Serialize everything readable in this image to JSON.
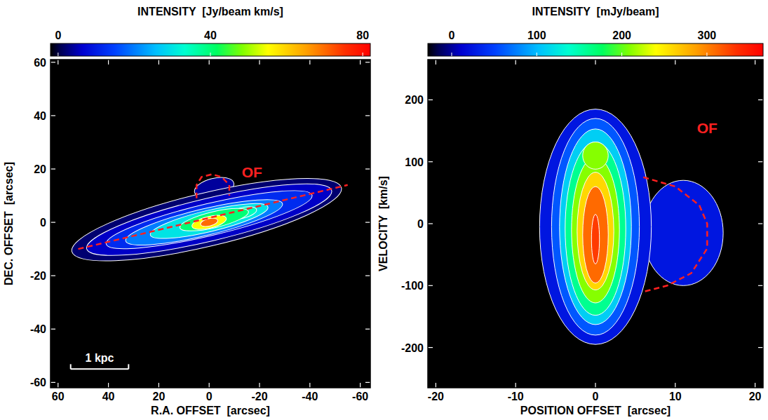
{
  "chart_data": [
    {
      "type": "heatmap",
      "xlabel": "R.A. OFFSET  [arcsec]",
      "ylabel": "DEC. OFFSET  [arcsec]",
      "xlim": [
        63,
        -64
      ],
      "ylim": [
        -62,
        61
      ],
      "xticks": [
        60,
        40,
        20,
        0,
        -20,
        -40,
        -60
      ],
      "yticks": [
        -60,
        -40,
        -20,
        0,
        20,
        40,
        60
      ],
      "colorbar": {
        "label": "INTENSITY  [Jy/beam km/s]",
        "range": [
          -2,
          82
        ],
        "ticks": [
          0,
          40,
          80
        ]
      },
      "major_axis": {
        "x": [
          52,
          -55
        ],
        "y": [
          -10,
          14
        ]
      },
      "components": [
        {
          "x": -2,
          "y": 13,
          "a": 8,
          "b": 3.5,
          "value": 4
        },
        {
          "x": 1,
          "y": 1,
          "a": 55,
          "b": 10,
          "value": 2
        },
        {
          "x": 0,
          "y": 1,
          "a": 50,
          "b": 8,
          "value": 6
        },
        {
          "x": 0,
          "y": 1,
          "a": 42,
          "b": 6,
          "value": 12
        },
        {
          "x": 2,
          "y": 0,
          "a": 32,
          "b": 5,
          "value": 20
        },
        {
          "x": 0,
          "y": 0.5,
          "a": 24,
          "b": 4,
          "value": 30
        },
        {
          "x": -13,
          "y": 3.5,
          "a": 6,
          "b": 2,
          "value": 35
        },
        {
          "x": -2,
          "y": 1,
          "a": 14,
          "b": 3,
          "value": 40
        },
        {
          "x": 0,
          "y": 0,
          "a": 7,
          "b": 2.2,
          "value": 55
        },
        {
          "x": 0,
          "y": 0,
          "a": 3.5,
          "b": 1.4,
          "value": 70
        }
      ],
      "outflow": {
        "label": "OF",
        "label_x": -17,
        "label_y": 19,
        "x": [
          5,
          5,
          3,
          -1,
          -5,
          -8,
          -8
        ],
        "y": [
          9,
          14,
          17,
          18,
          17,
          14,
          10
        ]
      },
      "scale_bar": {
        "label": "1 kpc",
        "x": [
          55,
          32
        ],
        "y": -55
      }
    },
    {
      "type": "heatmap",
      "xlabel": "POSITION OFFSET  [arcsec]",
      "ylabel": "VELOCITY  [km/s]",
      "xlim": [
        -21,
        21
      ],
      "ylim": [
        -265,
        265
      ],
      "xticks": [
        -20,
        -10,
        0,
        10,
        20
      ],
      "yticks": [
        -200,
        -100,
        0,
        100,
        200
      ],
      "colorbar": {
        "label": "INTENSITY  [mJy/beam]",
        "range": [
          -28,
          366
        ],
        "ticks": [
          0,
          100,
          200,
          300
        ]
      },
      "components": [
        {
          "x": 11,
          "y": -15,
          "a": 5,
          "b": 85,
          "value": 25
        },
        {
          "x": 0,
          "y": -5,
          "a": 7,
          "b": 190,
          "value": 25
        },
        {
          "x": 0,
          "y": -5,
          "a": 5.5,
          "b": 175,
          "value": 60
        },
        {
          "x": 0,
          "y": -5,
          "a": 4.5,
          "b": 158,
          "value": 110
        },
        {
          "x": 0,
          "y": -8,
          "a": 3.8,
          "b": 140,
          "value": 160
        },
        {
          "x": 0,
          "y": -10,
          "a": 3,
          "b": 118,
          "value": 210
        },
        {
          "x": 0,
          "y": 110,
          "a": 1.6,
          "b": 22,
          "value": 210
        },
        {
          "x": 0,
          "y": -12,
          "a": 2.3,
          "b": 95,
          "value": 260
        },
        {
          "x": 0,
          "y": -18,
          "a": 1.6,
          "b": 78,
          "value": 310
        },
        {
          "x": 0,
          "y": -25,
          "a": 0.5,
          "b": 40,
          "value": 330
        }
      ],
      "outflow": {
        "label": "OF",
        "label_x": 14,
        "label_y": 155,
        "x": [
          6,
          10,
          13,
          14,
          14,
          12,
          9,
          6
        ],
        "y": [
          75,
          60,
          30,
          0,
          -40,
          -80,
          -100,
          -110
        ]
      }
    }
  ]
}
